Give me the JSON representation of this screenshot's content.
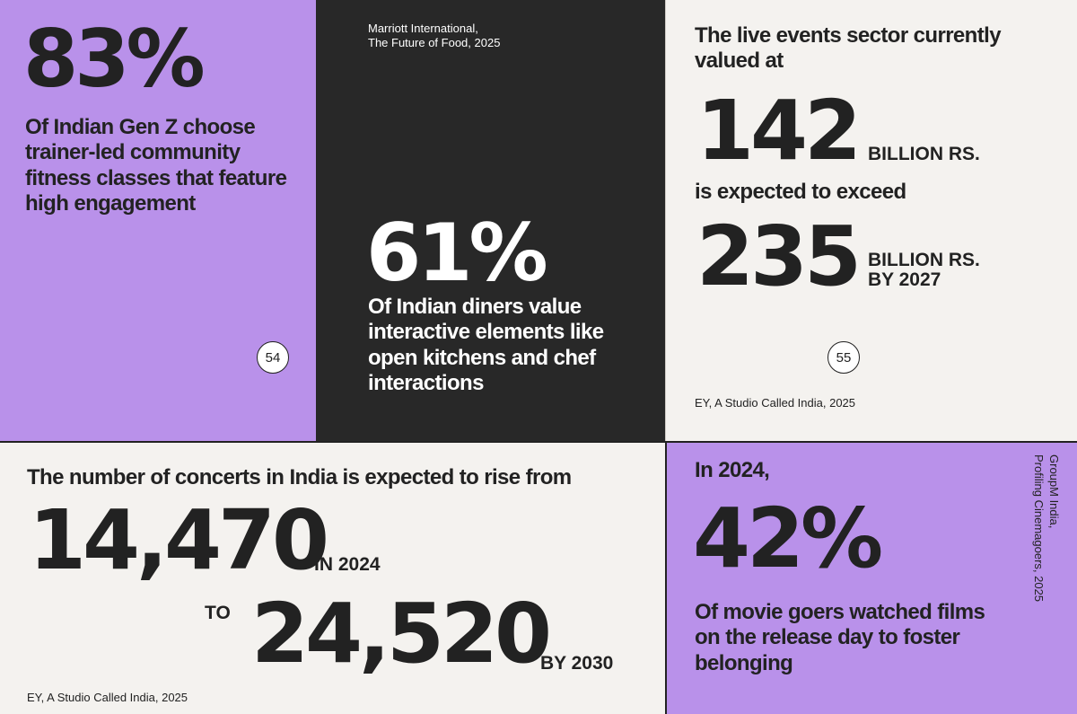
{
  "panel_fitness": {
    "stat": "83%",
    "description": "Of Indian Gen Z choose trainer-led community fitness classes that feature high engagement",
    "page_number": "54"
  },
  "panel_dining": {
    "source_line1": "Marriott International,",
    "source_line2": "The Future of Food, 2025",
    "stat": "61%",
    "description": "Of Indian diners value interactive elements like open kitchens and chef interactions"
  },
  "panel_events": {
    "intro": "The live events sector currently valued at",
    "value_current": "142",
    "unit_current": "BILLION RS.",
    "middle": "is expected to exceed",
    "value_future": "235",
    "unit_future_line1": "BILLION RS.",
    "unit_future_line2": "BY 2027",
    "page_number": "55",
    "source": "EY, A Studio Called India, 2025"
  },
  "panel_concerts": {
    "intro": "The number of concerts in India is expected to rise from",
    "value_from": "14,470",
    "label_from": "IN 2024",
    "connector": "TO",
    "value_to": "24,520",
    "label_to": "BY 2030",
    "source": "EY, A Studio Called India, 2025"
  },
  "panel_movies": {
    "intro": "In 2024,",
    "stat": "42%",
    "description": "Of movie goers watched films on the release day to foster belonging",
    "source_line1": "GroupM India,",
    "source_line2": "Profiling Cinemagoers, 2025"
  }
}
